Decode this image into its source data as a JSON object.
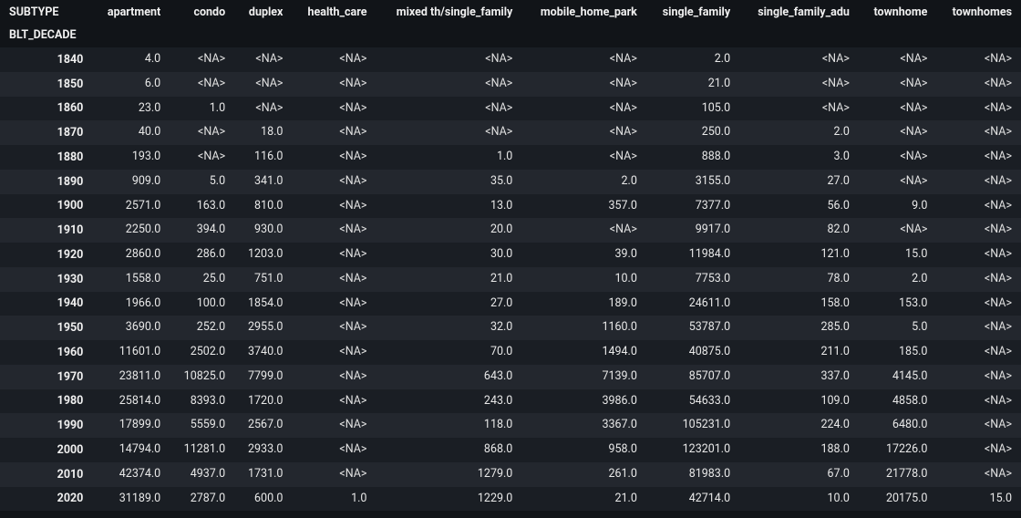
{
  "table": {
    "type": "table",
    "background_color": "#111418",
    "row_colors": {
      "odd": "#1a1e24",
      "even": "#23272e"
    },
    "text_color": "#e8e8e8",
    "header_fontweight": 700,
    "header_fontsize": 12.5,
    "cell_fontsize": 12.5,
    "na_token": "<NA>",
    "columns_header_label": "SUBTYPE",
    "index_header_label": "BLT_DECADE",
    "column_alignment": "right",
    "index_alignment": "right",
    "columns": [
      "apartment",
      "condo",
      "duplex",
      "health_care",
      "mixed th/single_family",
      "mobile_home_park",
      "single_family",
      "single_family_adu",
      "townhome",
      "townhomes"
    ],
    "index": [
      "1840",
      "1850",
      "1860",
      "1870",
      "1880",
      "1890",
      "1900",
      "1910",
      "1920",
      "1930",
      "1940",
      "1950",
      "1960",
      "1970",
      "1980",
      "1990",
      "2000",
      "2010",
      "2020"
    ],
    "rows": [
      [
        "4.0",
        "<NA>",
        "<NA>",
        "<NA>",
        "<NA>",
        "<NA>",
        "2.0",
        "<NA>",
        "<NA>",
        "<NA>"
      ],
      [
        "6.0",
        "<NA>",
        "<NA>",
        "<NA>",
        "<NA>",
        "<NA>",
        "21.0",
        "<NA>",
        "<NA>",
        "<NA>"
      ],
      [
        "23.0",
        "1.0",
        "<NA>",
        "<NA>",
        "<NA>",
        "<NA>",
        "105.0",
        "<NA>",
        "<NA>",
        "<NA>"
      ],
      [
        "40.0",
        "<NA>",
        "18.0",
        "<NA>",
        "<NA>",
        "<NA>",
        "250.0",
        "2.0",
        "<NA>",
        "<NA>"
      ],
      [
        "193.0",
        "<NA>",
        "116.0",
        "<NA>",
        "1.0",
        "<NA>",
        "888.0",
        "3.0",
        "<NA>",
        "<NA>"
      ],
      [
        "909.0",
        "5.0",
        "341.0",
        "<NA>",
        "35.0",
        "2.0",
        "3155.0",
        "27.0",
        "<NA>",
        "<NA>"
      ],
      [
        "2571.0",
        "163.0",
        "810.0",
        "<NA>",
        "13.0",
        "357.0",
        "7377.0",
        "56.0",
        "9.0",
        "<NA>"
      ],
      [
        "2250.0",
        "394.0",
        "930.0",
        "<NA>",
        "20.0",
        "<NA>",
        "9917.0",
        "82.0",
        "<NA>",
        "<NA>"
      ],
      [
        "2860.0",
        "286.0",
        "1203.0",
        "<NA>",
        "30.0",
        "39.0",
        "11984.0",
        "121.0",
        "15.0",
        "<NA>"
      ],
      [
        "1558.0",
        "25.0",
        "751.0",
        "<NA>",
        "21.0",
        "10.0",
        "7753.0",
        "78.0",
        "2.0",
        "<NA>"
      ],
      [
        "1966.0",
        "100.0",
        "1854.0",
        "<NA>",
        "27.0",
        "189.0",
        "24611.0",
        "158.0",
        "153.0",
        "<NA>"
      ],
      [
        "3690.0",
        "252.0",
        "2955.0",
        "<NA>",
        "32.0",
        "1160.0",
        "53787.0",
        "285.0",
        "5.0",
        "<NA>"
      ],
      [
        "11601.0",
        "2502.0",
        "3740.0",
        "<NA>",
        "70.0",
        "1494.0",
        "40875.0",
        "211.0",
        "185.0",
        "<NA>"
      ],
      [
        "23811.0",
        "10825.0",
        "7799.0",
        "<NA>",
        "643.0",
        "7139.0",
        "85707.0",
        "337.0",
        "4145.0",
        "<NA>"
      ],
      [
        "25814.0",
        "8393.0",
        "1720.0",
        "<NA>",
        "243.0",
        "3986.0",
        "54633.0",
        "109.0",
        "4858.0",
        "<NA>"
      ],
      [
        "17899.0",
        "5559.0",
        "2567.0",
        "<NA>",
        "118.0",
        "3367.0",
        "105231.0",
        "224.0",
        "6480.0",
        "<NA>"
      ],
      [
        "14794.0",
        "11281.0",
        "2933.0",
        "<NA>",
        "868.0",
        "958.0",
        "123201.0",
        "188.0",
        "17226.0",
        "<NA>"
      ],
      [
        "42374.0",
        "4937.0",
        "1731.0",
        "<NA>",
        "1279.0",
        "261.0",
        "81983.0",
        "67.0",
        "21778.0",
        "<NA>"
      ],
      [
        "31189.0",
        "2787.0",
        "600.0",
        "1.0",
        "1229.0",
        "21.0",
        "42714.0",
        "10.0",
        "20175.0",
        "15.0"
      ]
    ]
  }
}
